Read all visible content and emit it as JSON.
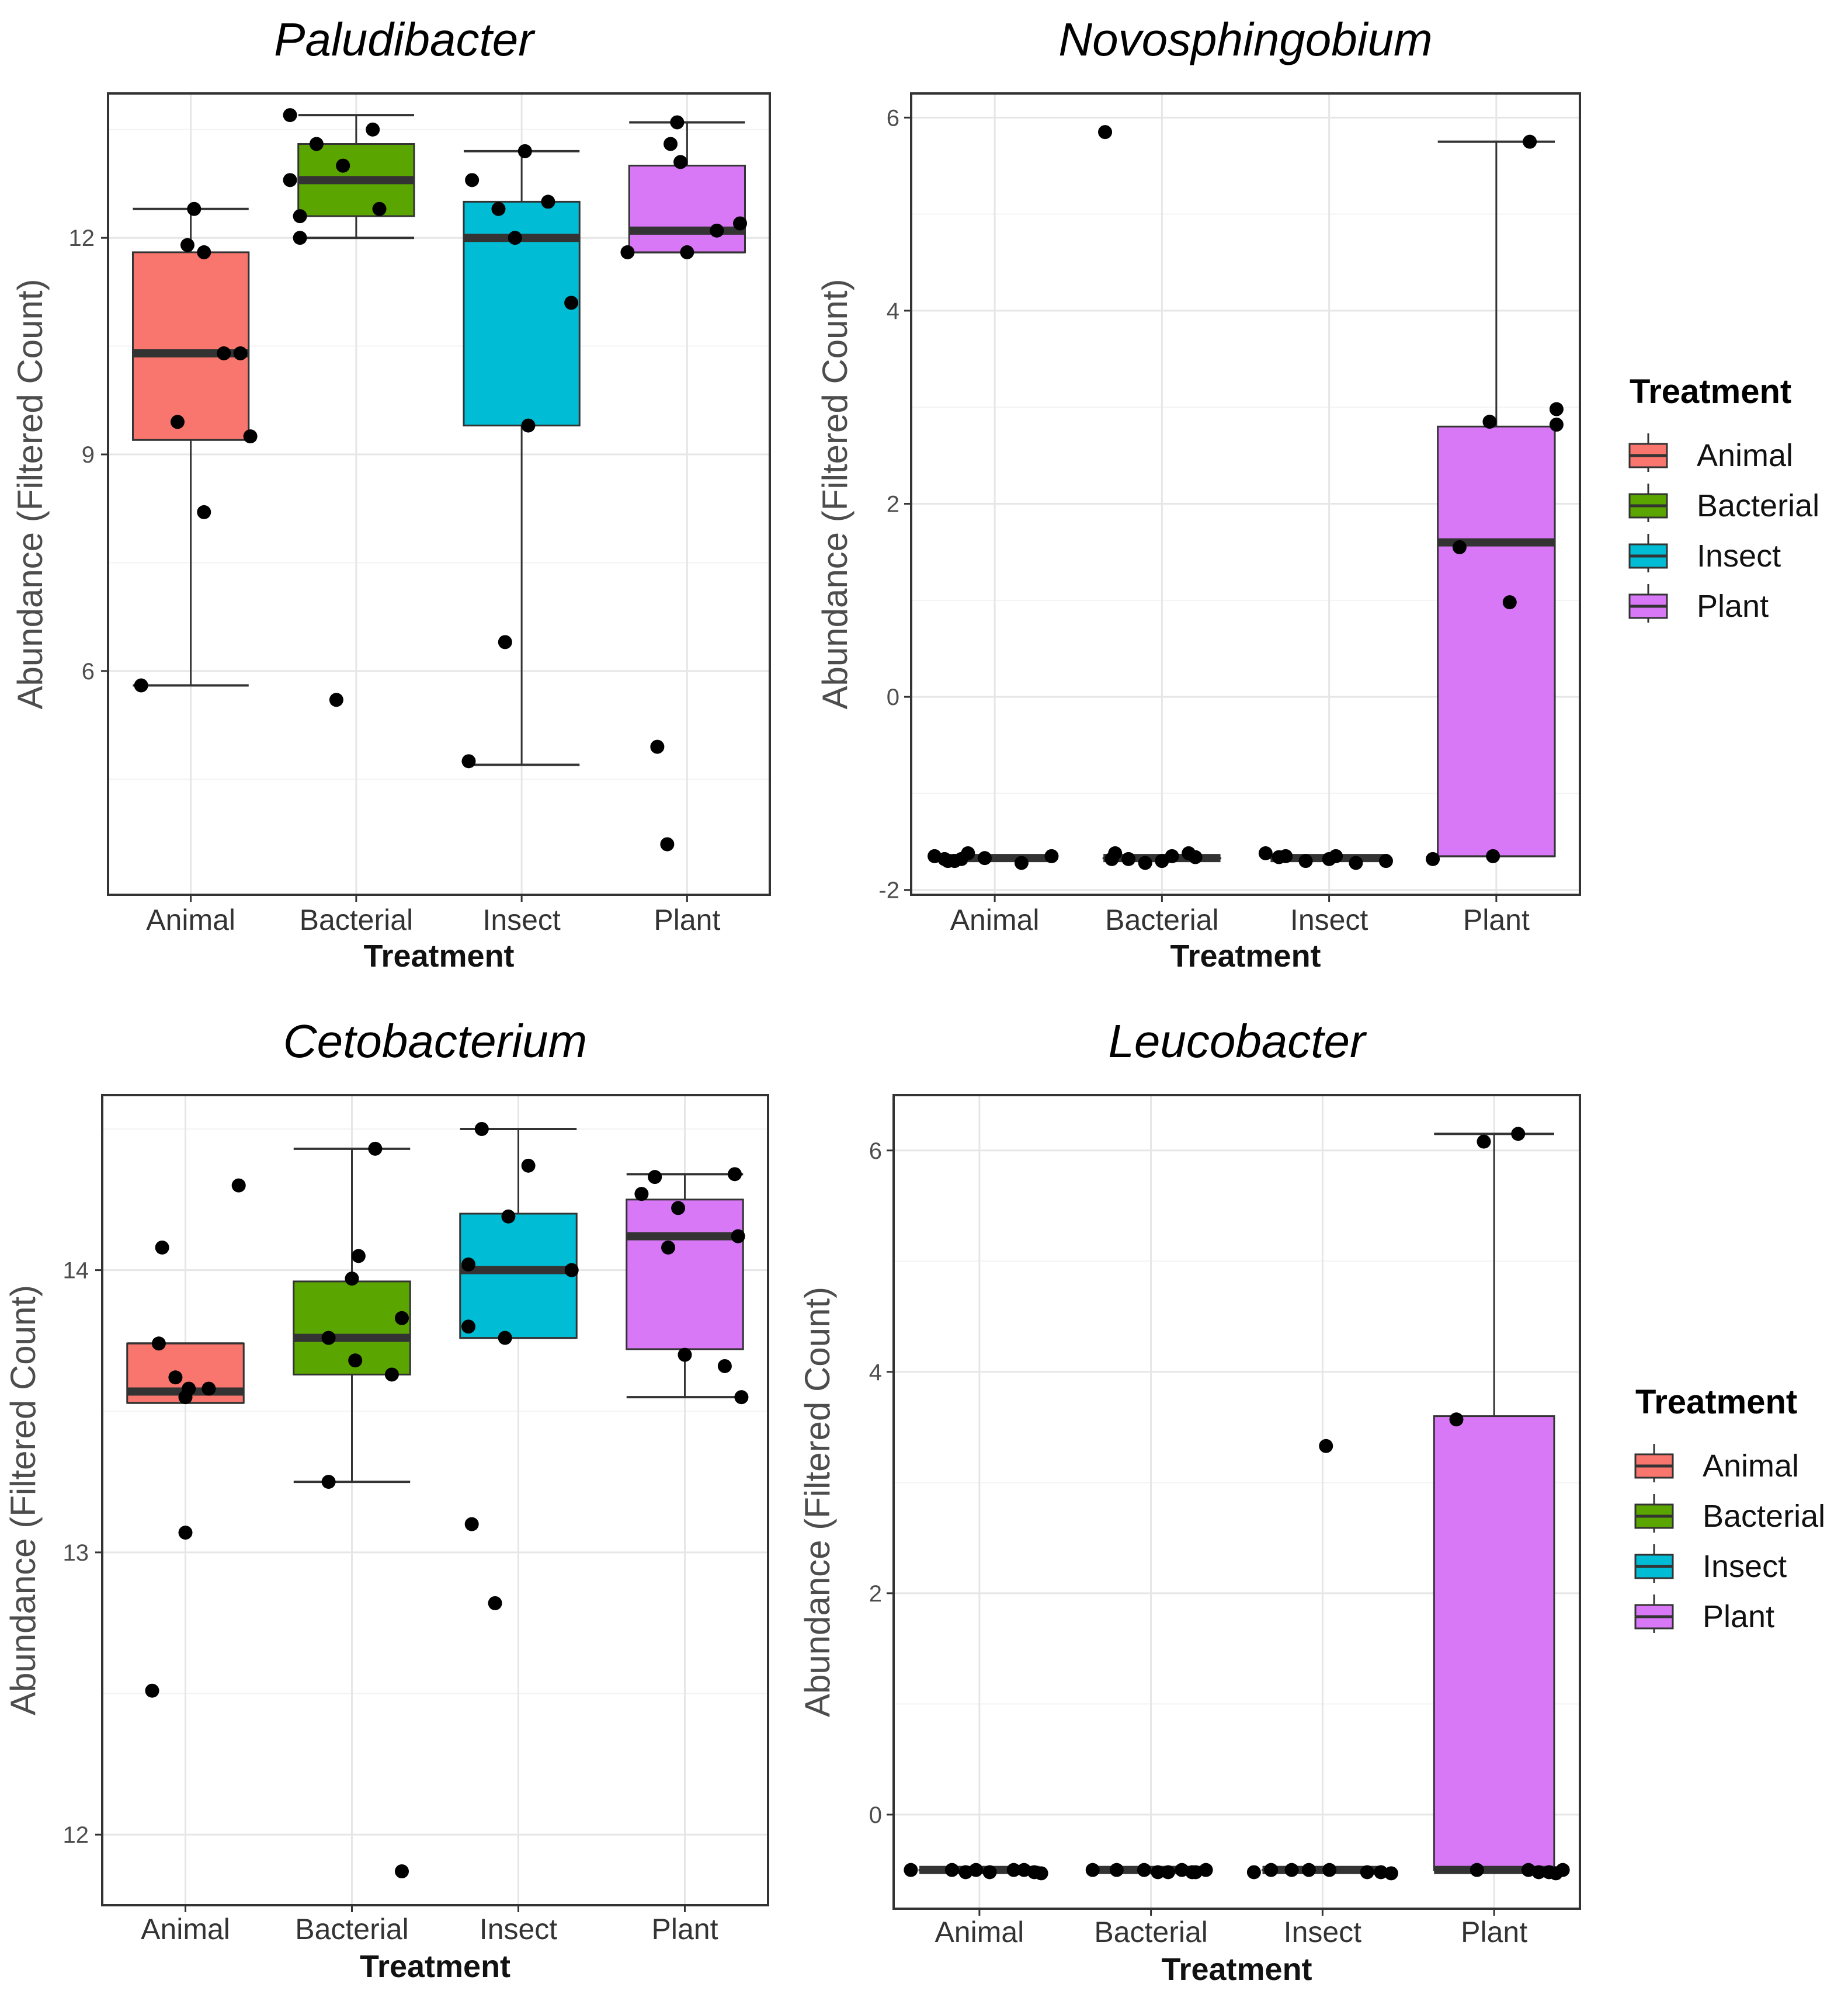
{
  "colors": {
    "Animal": "#F8766D",
    "Bacterial": "#5BA500",
    "Insect": "#00BCD4",
    "Plant": "#D978F7",
    "panel_border": "#333333",
    "grid_major": "#E6E6E6",
    "grid_minor": "#F3F3F3",
    "median": "#333333",
    "point": "#000000"
  },
  "chart_data": [
    {
      "type": "box",
      "title": "Paludibacter",
      "xlabel": "Treatment",
      "ylabel": "Abundance (Filtered Count)",
      "categories": [
        "Animal",
        "Bacterial",
        "Insect",
        "Plant"
      ],
      "ylim": [
        2.9,
        14.0
      ],
      "yticks": [
        6,
        9,
        12
      ],
      "boxes": [
        {
          "group": "Animal",
          "lower": 5.8,
          "q1": 9.2,
          "median": 10.4,
          "q3": 11.8,
          "upper": 12.4
        },
        {
          "group": "Bacterial",
          "lower": 12.0,
          "q1": 12.3,
          "median": 12.8,
          "q3": 13.3,
          "upper": 13.7
        },
        {
          "group": "Insect",
          "lower": 4.7,
          "q1": 9.4,
          "median": 12.0,
          "q3": 12.5,
          "upper": 13.2
        },
        {
          "group": "Plant",
          "lower": 11.8,
          "q1": 11.8,
          "median": 12.1,
          "q3": 13.0,
          "upper": 13.6
        }
      ],
      "points": [
        {
          "group": "Animal",
          "values": [
            12.4,
            11.9,
            11.8,
            10.4,
            10.4,
            9.45,
            9.25,
            8.2,
            5.8
          ],
          "jitter": [
            0.02,
            -0.02,
            0.08,
            0.2,
            0.3,
            -0.08,
            0.36,
            0.08,
            -0.3
          ]
        },
        {
          "group": "Bacterial",
          "values": [
            13.7,
            13.3,
            13.5,
            13.0,
            12.8,
            12.4,
            12.3,
            12.0,
            5.6
          ],
          "jitter": [
            -0.4,
            -0.24,
            0.1,
            -0.08,
            -0.4,
            0.14,
            -0.34,
            -0.34,
            -0.12
          ]
        },
        {
          "group": "Insect",
          "values": [
            13.2,
            12.8,
            12.5,
            12.4,
            12.0,
            11.1,
            9.4,
            6.4,
            4.75
          ],
          "jitter": [
            0.02,
            -0.3,
            0.16,
            -0.14,
            -0.04,
            0.3,
            0.04,
            -0.1,
            -0.32
          ]
        },
        {
          "group": "Plant",
          "values": [
            13.6,
            13.3,
            13.05,
            12.2,
            12.1,
            11.8,
            11.8,
            4.95,
            3.6
          ],
          "jitter": [
            -0.06,
            -0.1,
            -0.04,
            0.32,
            0.18,
            -0.36,
            0.0,
            -0.18,
            -0.12
          ]
        }
      ]
    },
    {
      "type": "box",
      "title": "Novosphingobium",
      "xlabel": "Treatment",
      "ylabel": "Abundance (Filtered Count)",
      "categories": [
        "Animal",
        "Bacterial",
        "Insect",
        "Plant"
      ],
      "ylim": [
        -2.05,
        6.25
      ],
      "yticks": [
        -2,
        0,
        2,
        4,
        6
      ],
      "boxes": [
        {
          "group": "Animal",
          "lower": -1.67,
          "q1": -1.67,
          "median": -1.67,
          "q3": -1.67,
          "upper": -1.67
        },
        {
          "group": "Bacterial",
          "lower": -1.67,
          "q1": -1.67,
          "median": -1.67,
          "q3": -1.67,
          "upper": -1.67
        },
        {
          "group": "Insect",
          "lower": -1.67,
          "q1": -1.67,
          "median": -1.67,
          "q3": -1.67,
          "upper": -1.67
        },
        {
          "group": "Plant",
          "lower": -1.65,
          "q1": -1.65,
          "median": 1.6,
          "q3": 2.8,
          "upper": 5.75
        }
      ],
      "points": [
        {
          "group": "Animal",
          "values": [
            -1.65,
            -1.68,
            -1.7,
            -1.62,
            -1.67,
            -1.7,
            -1.72,
            -1.65,
            -1.68
          ],
          "jitter": [
            -0.36,
            -0.3,
            -0.24,
            -0.16,
            -0.06,
            -0.28,
            0.16,
            0.34,
            -0.2
          ]
        },
        {
          "group": "Bacterial",
          "values": [
            5.85,
            -1.62,
            -1.68,
            -1.72,
            -1.65,
            -1.62,
            -1.68,
            -1.7,
            -1.66
          ],
          "jitter": [
            -0.34,
            -0.28,
            -0.2,
            -0.1,
            0.06,
            0.16,
            -0.3,
            0.0,
            0.2
          ]
        },
        {
          "group": "Insect",
          "values": [
            -1.62,
            -1.65,
            -1.7,
            -1.68,
            -1.65,
            -1.72,
            -1.7,
            -1.66
          ],
          "jitter": [
            -0.38,
            -0.26,
            -0.14,
            0.0,
            0.04,
            0.16,
            0.34,
            -0.3
          ]
        },
        {
          "group": "Plant",
          "values": [
            5.75,
            2.98,
            2.85,
            2.82,
            1.55,
            0.98,
            -1.65,
            -1.68
          ],
          "jitter": [
            0.2,
            0.36,
            -0.04,
            0.36,
            -0.22,
            0.08,
            -0.02,
            -0.38
          ]
        }
      ]
    },
    {
      "type": "box",
      "title": "Cetobacterium",
      "xlabel": "Treatment",
      "ylabel": "Abundance (Filtered Count)",
      "categories": [
        "Animal",
        "Bacterial",
        "Insect",
        "Plant"
      ],
      "ylim": [
        11.75,
        14.62
      ],
      "yticks": [
        12,
        13,
        14
      ],
      "boxes": [
        {
          "group": "Animal",
          "lower": 13.53,
          "q1": 13.53,
          "median": 13.57,
          "q3": 13.74,
          "upper": 13.74
        },
        {
          "group": "Bacterial",
          "lower": 13.25,
          "q1": 13.63,
          "median": 13.76,
          "q3": 13.96,
          "upper": 14.43
        },
        {
          "group": "Insect",
          "lower": 13.76,
          "q1": 13.76,
          "median": 14.0,
          "q3": 14.2,
          "upper": 14.5
        },
        {
          "group": "Plant",
          "lower": 13.55,
          "q1": 13.72,
          "median": 14.12,
          "q3": 14.25,
          "upper": 14.34
        }
      ],
      "points": [
        {
          "group": "Animal",
          "values": [
            14.3,
            14.08,
            13.74,
            13.62,
            13.58,
            13.55,
            13.58,
            13.07,
            12.51
          ],
          "jitter": [
            0.32,
            -0.14,
            -0.16,
            -0.06,
            0.02,
            0.0,
            0.14,
            0.0,
            -0.2
          ]
        },
        {
          "group": "Bacterial",
          "values": [
            14.43,
            14.05,
            13.97,
            13.83,
            13.76,
            13.68,
            13.63,
            13.25,
            11.87
          ],
          "jitter": [
            0.14,
            0.04,
            0.0,
            0.3,
            -0.14,
            0.02,
            0.24,
            -0.14,
            0.3
          ]
        },
        {
          "group": "Insect",
          "values": [
            14.5,
            14.37,
            14.19,
            14.02,
            14.0,
            13.8,
            13.76,
            13.1,
            12.82
          ],
          "jitter": [
            -0.22,
            0.06,
            -0.06,
            -0.3,
            0.32,
            -0.3,
            -0.08,
            -0.28,
            -0.14
          ]
        },
        {
          "group": "Plant",
          "values": [
            14.34,
            14.33,
            14.27,
            14.22,
            14.12,
            14.08,
            13.7,
            13.66,
            13.55
          ],
          "jitter": [
            0.3,
            -0.18,
            -0.26,
            -0.04,
            0.32,
            -0.1,
            0.0,
            0.24,
            0.34
          ]
        }
      ]
    },
    {
      "type": "box",
      "title": "Leucobacter",
      "xlabel": "Treatment",
      "ylabel": "Abundance (Filtered Count)",
      "categories": [
        "Animal",
        "Bacterial",
        "Insect",
        "Plant"
      ],
      "ylim": [
        -0.85,
        6.5
      ],
      "yticks": [
        0,
        2,
        4,
        6
      ],
      "boxes": [
        {
          "group": "Animal",
          "lower": -0.5,
          "q1": -0.5,
          "median": -0.5,
          "q3": -0.5,
          "upper": -0.5
        },
        {
          "group": "Bacterial",
          "lower": -0.5,
          "q1": -0.5,
          "median": -0.5,
          "q3": -0.5,
          "upper": -0.5
        },
        {
          "group": "Insect",
          "lower": -0.5,
          "q1": -0.5,
          "median": -0.5,
          "q3": -0.5,
          "upper": -0.5
        },
        {
          "group": "Plant",
          "lower": -0.5,
          "q1": -0.5,
          "median": -0.5,
          "q3": 3.6,
          "upper": 6.15
        }
      ],
      "points": [
        {
          "group": "Animal",
          "values": [
            -0.5,
            -0.5,
            -0.52,
            -0.5,
            -0.52,
            -0.5,
            -0.5,
            -0.52,
            -0.53
          ],
          "jitter": [
            -0.4,
            -0.16,
            -0.08,
            -0.02,
            0.06,
            0.2,
            0.26,
            0.32,
            0.36
          ]
        },
        {
          "group": "Bacterial",
          "values": [
            -0.5,
            -0.5,
            -0.5,
            -0.52,
            -0.52,
            -0.5,
            -0.52,
            -0.5,
            -0.52
          ],
          "jitter": [
            -0.34,
            -0.2,
            -0.04,
            0.04,
            0.1,
            0.18,
            0.24,
            0.32,
            0.26
          ]
        },
        {
          "group": "Insect",
          "values": [
            -0.52,
            -0.5,
            -0.5,
            -0.5,
            -0.5,
            -0.52,
            -0.52,
            -0.53,
            3.33
          ],
          "jitter": [
            -0.4,
            -0.3,
            -0.18,
            -0.08,
            0.04,
            0.26,
            0.34,
            0.4,
            0.02
          ]
        },
        {
          "group": "Plant",
          "values": [
            6.15,
            6.08,
            3.57,
            -0.5,
            -0.5,
            -0.52,
            -0.52,
            -0.53,
            -0.5
          ],
          "jitter": [
            0.14,
            -0.06,
            -0.22,
            -0.1,
            0.2,
            0.26,
            0.32,
            0.36,
            0.4
          ]
        }
      ]
    }
  ],
  "legends": [
    {
      "title": "Treatment",
      "entries": [
        "Animal",
        "Bacterial",
        "Insect",
        "Plant"
      ]
    },
    {
      "title": "Treatment",
      "entries": [
        "Animal",
        "Bacterial",
        "Insect",
        "Plant"
      ]
    }
  ]
}
